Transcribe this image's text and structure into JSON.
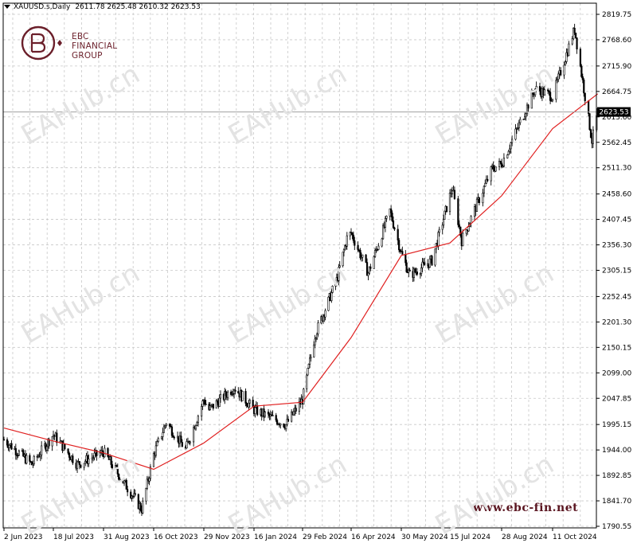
{
  "header": {
    "symbol": "XAUUSD.s,Daily",
    "ohlc": "2611.78 2625.48 2610.32 2623.53"
  },
  "brand": {
    "line1": "EBC",
    "line2": "FINANCIAL",
    "line3": "GROUP",
    "website": "www.ebc-fin.net",
    "watermark": "EAHub.cn",
    "color": "#6b1f2a"
  },
  "colors": {
    "candles": "#000000",
    "moving_average": "#e02020",
    "grid": "#c8c8c8",
    "price_line": "#a0a0a0"
  },
  "chart_data": {
    "type": "candlestick",
    "title": "",
    "current_price": 2623.53,
    "y_ticks": [
      2819.75,
      2768.6,
      2715.9,
      2664.75,
      2613.6,
      2562.45,
      2511.3,
      2458.6,
      2407.45,
      2356.3,
      2305.15,
      2252.45,
      2201.3,
      2150.15,
      2099.0,
      2047.85,
      1995.15,
      1944.0,
      1892.85,
      1841.7,
      1790.55
    ],
    "y_tick_labels": [
      "2819.75",
      "2768.60",
      "2715.90",
      "2664.75",
      "2613.60",
      "2562.45",
      "2511.30",
      "2458.60",
      "2407.45",
      "2356.30",
      "2305.15",
      "2252.45",
      "2201.30",
      "2150.15",
      "2099.00",
      "2047.85",
      "1995.15",
      "1944.00",
      "1892.85",
      "1841.70",
      "1790.55"
    ],
    "x_tick_labels": [
      "2 Jun 2023",
      "18 Jul 2023",
      "31 Aug 2023",
      "16 Oct 2023",
      "29 Nov 2023",
      "16 Jan 2024",
      "29 Feb 2024",
      "16 Apr 2024",
      "30 May 2024",
      "15 Jul 2024",
      "28 Aug 2024",
      "11 Oct 2024"
    ],
    "price_path": [
      {
        "date": "2 Jun 2023",
        "close": 1965
      },
      {
        "date": "28 Jun 2023",
        "close": 1915
      },
      {
        "date": "18 Jul 2023",
        "close": 1975
      },
      {
        "date": "8 Aug 2023",
        "close": 1915
      },
      {
        "date": "31 Aug 2023",
        "close": 1940
      },
      {
        "date": "5 Oct 2023",
        "close": 1825
      },
      {
        "date": "16 Oct 2023",
        "close": 1935
      },
      {
        "date": "27 Oct 2023",
        "close": 2000
      },
      {
        "date": "13 Nov 2023",
        "close": 1945
      },
      {
        "date": "29 Nov 2023",
        "close": 2045
      },
      {
        "date": "4 Dec 2023",
        "close": 2025
      },
      {
        "date": "28 Dec 2023",
        "close": 2070
      },
      {
        "date": "16 Jan 2024",
        "close": 2025
      },
      {
        "date": "14 Feb 2024",
        "close": 1995
      },
      {
        "date": "29 Feb 2024",
        "close": 2045
      },
      {
        "date": "12 Mar 2024",
        "close": 2175
      },
      {
        "date": "2 Apr 2024",
        "close": 2285
      },
      {
        "date": "12 Apr 2024",
        "close": 2370
      },
      {
        "date": "16 Apr 2024",
        "close": 2380
      },
      {
        "date": "1 May 2024",
        "close": 2300
      },
      {
        "date": "20 May 2024",
        "close": 2425
      },
      {
        "date": "30 May 2024",
        "close": 2340
      },
      {
        "date": "7 Jun 2024",
        "close": 2295
      },
      {
        "date": "28 Jun 2024",
        "close": 2325
      },
      {
        "date": "17 Jul 2024",
        "close": 2470
      },
      {
        "date": "25 Jul 2024",
        "close": 2365
      },
      {
        "date": "20 Aug 2024",
        "close": 2510
      },
      {
        "date": "28 Aug 2024",
        "close": 2520
      },
      {
        "date": "26 Sep 2024",
        "close": 2670
      },
      {
        "date": "11 Oct 2024",
        "close": 2655
      },
      {
        "date": "30 Oct 2024",
        "close": 2790
      },
      {
        "date": "14 Nov 2024",
        "close": 2565
      },
      {
        "date": "19 Nov 2024",
        "close": 2623.53
      }
    ],
    "moving_average": [
      {
        "date": "2 Jun 2023",
        "value": 1988
      },
      {
        "date": "18 Jul 2023",
        "value": 1962
      },
      {
        "date": "31 Aug 2023",
        "value": 1938
      },
      {
        "date": "16 Oct 2023",
        "value": 1905
      },
      {
        "date": "29 Nov 2023",
        "value": 1958
      },
      {
        "date": "16 Jan 2024",
        "value": 2032
      },
      {
        "date": "29 Feb 2024",
        "value": 2040
      },
      {
        "date": "16 Apr 2024",
        "value": 2170
      },
      {
        "date": "30 May 2024",
        "value": 2335
      },
      {
        "date": "15 Jul 2024",
        "value": 2360
      },
      {
        "date": "28 Aug 2024",
        "value": 2455
      },
      {
        "date": "11 Oct 2024",
        "value": 2590
      },
      {
        "date": "19 Nov 2024",
        "value": 2660
      }
    ]
  }
}
